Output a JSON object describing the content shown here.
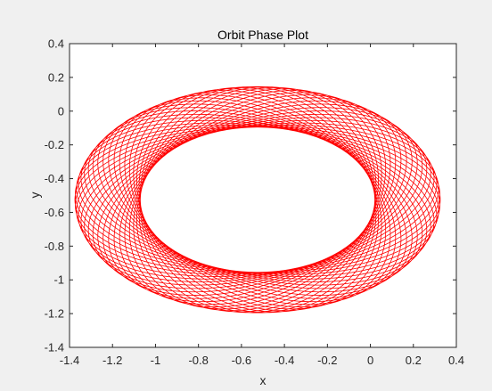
{
  "chart_data": {
    "type": "line",
    "title": "Orbit Phase Plot",
    "xlabel": "x",
    "ylabel": "y",
    "xlim": [
      -1.4,
      0.4
    ],
    "ylim": [
      -1.4,
      0.4
    ],
    "xticks": [
      "-1.4",
      "-1.2",
      "-1",
      "-0.8",
      "-0.6",
      "-0.4",
      "-0.2",
      "0",
      "0.2",
      "0.4"
    ],
    "yticks": [
      "0.4",
      "0.2",
      "0",
      "-0.2",
      "-0.4",
      "-0.6",
      "-0.8",
      "-1",
      "-1.2",
      "-1.4"
    ],
    "grid": false,
    "series": [
      {
        "color": "#ff0000",
        "curve": "precessing-ellipse orbit",
        "center": [
          -0.525,
          -0.525
        ],
        "max_radius": [
          0.85,
          0.67
        ],
        "inner_envelope_radius": [
          0.64,
          0.43
        ]
      }
    ]
  },
  "colors": {
    "figure_background": "#f0f0f0",
    "axes_background": "#ffffff",
    "axes_edge": "#262626",
    "line": "#ff0000"
  }
}
